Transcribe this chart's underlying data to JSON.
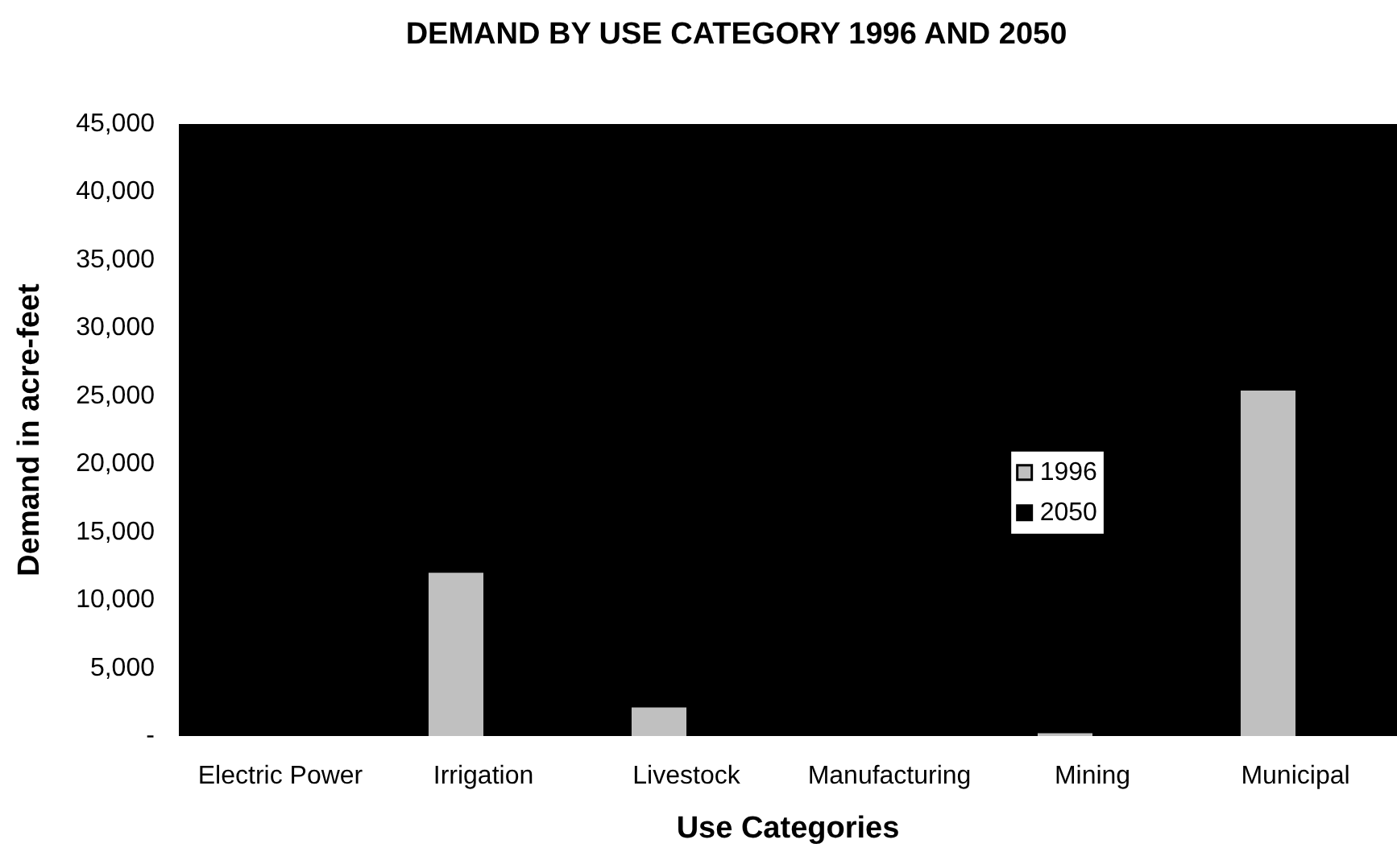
{
  "chart_data": {
    "type": "bar",
    "title": "DEMAND BY USE CATEGORY 1996 AND 2050",
    "xlabel": "Use Categories",
    "ylabel": "Demand in acre-feet",
    "categories": [
      "Electric Power",
      "Irrigation",
      "Livestock",
      "Manufacturing",
      "Mining",
      "Municipal"
    ],
    "series": [
      {
        "name": "1996",
        "color": "#c0c0c0",
        "values": [
          0,
          12000,
          2100,
          0,
          200,
          25400
        ]
      },
      {
        "name": "2050",
        "color": "#000000",
        "values": [
          null,
          null,
          null,
          null,
          null,
          null
        ]
      }
    ],
    "ylim": [
      0,
      45000
    ],
    "yticks": [
      {
        "value": 0,
        "label": "-"
      },
      {
        "value": 5000,
        "label": "5,000"
      },
      {
        "value": 10000,
        "label": "10,000"
      },
      {
        "value": 15000,
        "label": "15,000"
      },
      {
        "value": 20000,
        "label": "20,000"
      },
      {
        "value": 25000,
        "label": "25,000"
      },
      {
        "value": 30000,
        "label": "30,000"
      },
      {
        "value": 35000,
        "label": "35,000"
      },
      {
        "value": 40000,
        "label": "40,000"
      },
      {
        "value": 45000,
        "label": "45,000"
      }
    ],
    "grid": false,
    "legend": "right"
  }
}
